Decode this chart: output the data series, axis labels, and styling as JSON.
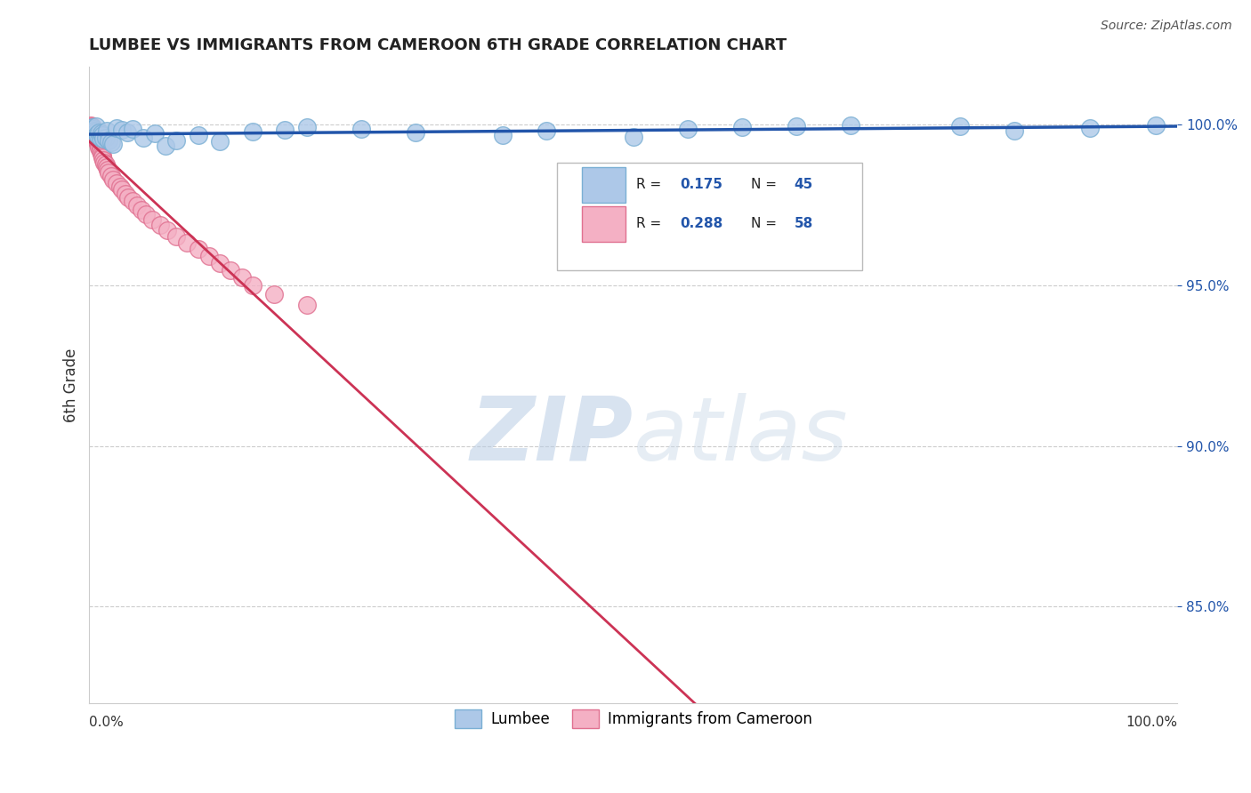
{
  "title": "LUMBEE VS IMMIGRANTS FROM CAMEROON 6TH GRADE CORRELATION CHART",
  "source": "Source: ZipAtlas.com",
  "ylabel": "6th Grade",
  "xlim": [
    0.0,
    1.0
  ],
  "ylim": [
    0.82,
    1.018
  ],
  "yticks": [
    0.85,
    0.9,
    0.95,
    1.0
  ],
  "ytick_labels": [
    "85.0%",
    "90.0%",
    "95.0%",
    "100.0%"
  ],
  "background_color": "#ffffff",
  "grid_color": "#cccccc",
  "lumbee_color": "#adc8e8",
  "lumbee_edge_color": "#7aafd4",
  "cameroon_color": "#f4b0c4",
  "cameroon_edge_color": "#e07090",
  "lumbee_line_color": "#2255aa",
  "cameroon_line_color": "#cc3355",
  "watermark_text": "ZIPatlas",
  "watermark_color": "#d0dff0",
  "R_lumbee": 0.175,
  "N_lumbee": 45,
  "R_cameroon": 0.288,
  "N_cameroon": 58,
  "lumbee_scatter_x": [
    0.001,
    0.002,
    0.003,
    0.004,
    0.005,
    0.006,
    0.006,
    0.007,
    0.008,
    0.009,
    0.01,
    0.011,
    0.012,
    0.013,
    0.015,
    0.016,
    0.018,
    0.02,
    0.022,
    0.025,
    0.03,
    0.035,
    0.04,
    0.05,
    0.06,
    0.07,
    0.08,
    0.1,
    0.12,
    0.15,
    0.18,
    0.2,
    0.25,
    0.3,
    0.38,
    0.42,
    0.5,
    0.55,
    0.6,
    0.65,
    0.7,
    0.8,
    0.85,
    0.92,
    0.98
  ],
  "lumbee_scatter_y": [
    0.999,
    0.9985,
    0.9992,
    0.9988,
    0.9982,
    0.9978,
    0.9995,
    0.997,
    0.9965,
    0.9975,
    0.996,
    0.9972,
    0.9968,
    0.9955,
    0.9958,
    0.998,
    0.995,
    0.9945,
    0.994,
    0.999,
    0.9985,
    0.9975,
    0.9988,
    0.996,
    0.9972,
    0.9935,
    0.9952,
    0.9968,
    0.9948,
    0.9978,
    0.9985,
    0.9992,
    0.9988,
    0.9975,
    0.9968,
    0.998,
    0.9962,
    0.9988,
    0.9992,
    0.9995,
    0.9998,
    0.9996,
    0.998,
    0.999,
    0.9998
  ],
  "cameroon_scatter_x": [
    0.001,
    0.001,
    0.002,
    0.002,
    0.002,
    0.003,
    0.003,
    0.003,
    0.004,
    0.004,
    0.004,
    0.005,
    0.005,
    0.005,
    0.006,
    0.006,
    0.007,
    0.007,
    0.007,
    0.008,
    0.008,
    0.009,
    0.009,
    0.01,
    0.01,
    0.011,
    0.012,
    0.012,
    0.013,
    0.014,
    0.015,
    0.016,
    0.017,
    0.018,
    0.02,
    0.022,
    0.025,
    0.028,
    0.03,
    0.033,
    0.036,
    0.04,
    0.044,
    0.048,
    0.052,
    0.058,
    0.065,
    0.072,
    0.08,
    0.09,
    0.1,
    0.11,
    0.12,
    0.13,
    0.14,
    0.15,
    0.17,
    0.2
  ],
  "cameroon_scatter_y": [
    0.9998,
    0.999,
    0.9985,
    0.9995,
    0.9978,
    0.9992,
    0.9982,
    0.997,
    0.9975,
    0.9988,
    0.9965,
    0.998,
    0.996,
    0.9972,
    0.9968,
    0.9955,
    0.9962,
    0.995,
    0.9958,
    0.9945,
    0.994,
    0.9935,
    0.993,
    0.9925,
    0.9918,
    0.991,
    0.9905,
    0.9898,
    0.989,
    0.9882,
    0.9875,
    0.9868,
    0.986,
    0.9852,
    0.984,
    0.983,
    0.9818,
    0.9808,
    0.9798,
    0.9785,
    0.9775,
    0.9762,
    0.9748,
    0.9735,
    0.972,
    0.9705,
    0.9688,
    0.967,
    0.9652,
    0.9632,
    0.9612,
    0.9592,
    0.957,
    0.9548,
    0.9525,
    0.95,
    0.9472,
    0.944
  ]
}
